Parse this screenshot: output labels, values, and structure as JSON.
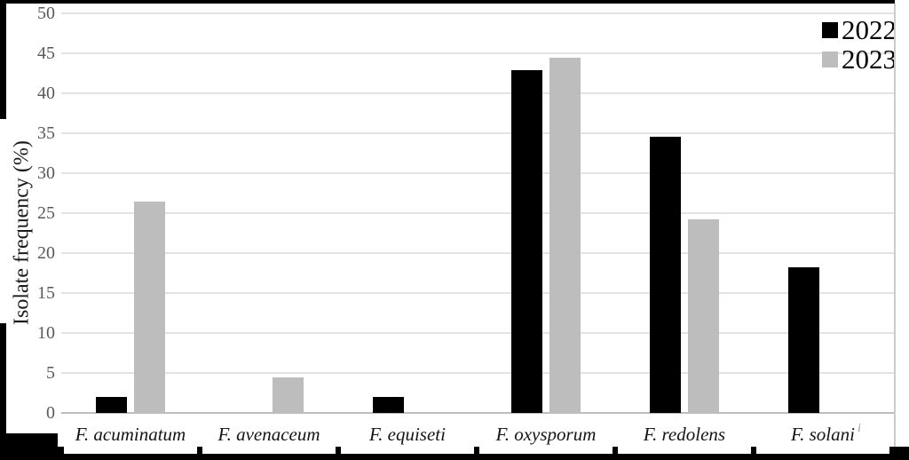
{
  "figure": {
    "footnote_mark": "i"
  },
  "chart_data": {
    "type": "bar",
    "title": "",
    "xlabel": "",
    "ylabel": "Isolate frequency (%)",
    "categories": [
      "F. acuminatum",
      "F. avenaceum",
      "F. equiseti",
      "F. oxysporum",
      "F. redolens",
      "F. solani"
    ],
    "series": [
      {
        "name": "2022",
        "color": "#000000",
        "values": [
          2.0,
          0,
          2.0,
          42.9,
          34.6,
          18.2
        ]
      },
      {
        "name": "2023",
        "color": "#bdbdbd",
        "values": [
          26.5,
          4.5,
          0,
          44.4,
          24.2,
          0
        ]
      }
    ],
    "ylim": [
      0,
      50
    ],
    "ytick_step": 5,
    "grid": true,
    "legend_position": "top-right",
    "category_style": "italic",
    "gridline_color": "#e3e3e3",
    "axis_line_color": "#bdbdbd",
    "tick_label_color": "#595959"
  }
}
